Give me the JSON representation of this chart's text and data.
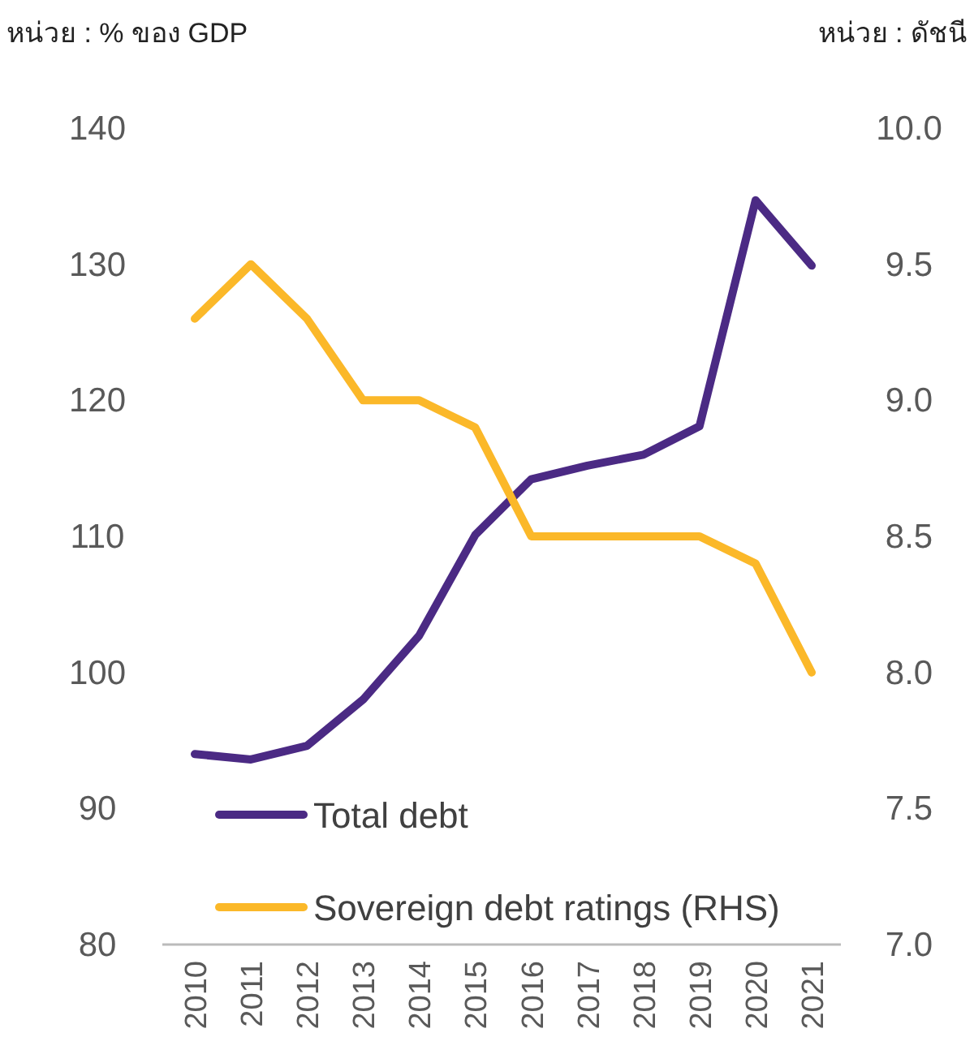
{
  "chart_data": {
    "type": "line",
    "ylabel": "หน่วย : % ของ GDP",
    "y2label": "หน่วย : ดัชนี",
    "categories": [
      "2010",
      "2011",
      "2012",
      "2013",
      "2014",
      "2015",
      "2016",
      "2017",
      "2018",
      "2019",
      "2020",
      "2021"
    ],
    "series": [
      {
        "name": "Total debt",
        "color": "#4b2a84",
        "values": [
          94.0,
          93.6,
          94.6,
          98.0,
          102.7,
          110.1,
          114.2,
          115.2,
          116.0,
          118.1,
          134.7,
          129.9
        ]
      },
      {
        "name": "Sovereign debt ratings (RHS)",
        "color": "#fbb829",
        "axis": "y2",
        "values": [
          9.3,
          9.5,
          9.3,
          9.0,
          9.0,
          8.9,
          8.5,
          8.5,
          8.5,
          8.5,
          8.4,
          8.0
        ]
      }
    ],
    "ylim": [
      80,
      140
    ],
    "yticks": [
      80,
      90,
      100,
      110,
      120,
      130,
      140
    ],
    "y2lim": [
      7.0,
      10.0
    ],
    "y2ticks": [
      {
        "value": 7.0,
        "label": "7.0"
      },
      {
        "value": 7.5,
        "label": "7.5"
      },
      {
        "value": 8.0,
        "label": "8.0"
      },
      {
        "value": 8.5,
        "label": "8.5"
      },
      {
        "value": 9.0,
        "label": "9.0"
      },
      {
        "value": 9.5,
        "label": "9.5"
      },
      {
        "value": 10.0,
        "label": "10.0"
      }
    ],
    "legend": "bottom left"
  }
}
